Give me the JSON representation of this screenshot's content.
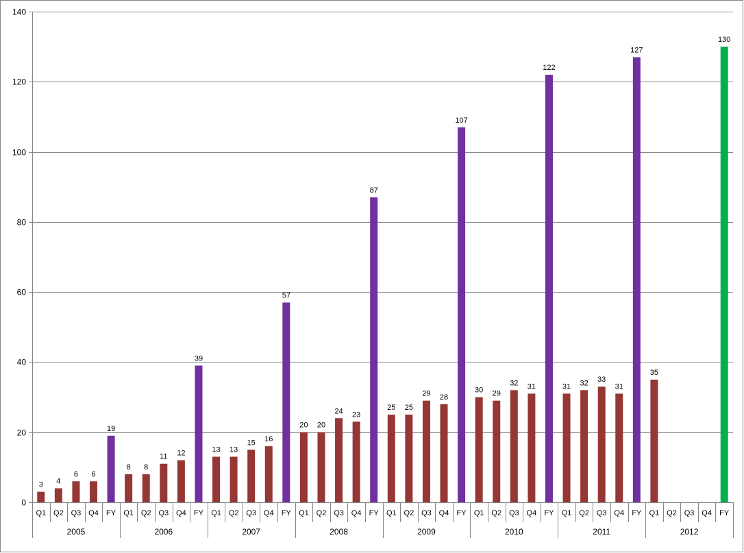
{
  "chart_data": {
    "type": "bar",
    "title": "",
    "xlabel": "",
    "ylabel": "",
    "ylim": [
      0,
      140
    ],
    "yticks": [
      "0",
      "20",
      "40",
      "60",
      "80",
      "100",
      "120",
      "140"
    ],
    "grid": true,
    "legend": "none",
    "groups": [
      {
        "year": "2005",
        "categories": [
          "Q1",
          "Q2",
          "Q3",
          "Q4",
          "FY"
        ],
        "values": [
          3,
          4,
          6,
          6,
          19
        ]
      },
      {
        "year": "2006",
        "categories": [
          "Q1",
          "Q2",
          "Q3",
          "Q4",
          "FY"
        ],
        "values": [
          8,
          8,
          11,
          12,
          39
        ]
      },
      {
        "year": "2007",
        "categories": [
          "Q1",
          "Q2",
          "Q3",
          "Q4",
          "FY"
        ],
        "values": [
          13,
          13,
          15,
          16,
          57
        ]
      },
      {
        "year": "2008",
        "categories": [
          "Q1",
          "Q2",
          "Q3",
          "Q4",
          "FY"
        ],
        "values": [
          20,
          20,
          24,
          23,
          87
        ]
      },
      {
        "year": "2009",
        "categories": [
          "Q1",
          "Q2",
          "Q3",
          "Q4",
          "FY"
        ],
        "values": [
          25,
          25,
          29,
          28,
          107
        ]
      },
      {
        "year": "2010",
        "categories": [
          "Q1",
          "Q2",
          "Q3",
          "Q4",
          "FY"
        ],
        "values": [
          30,
          29,
          32,
          31,
          122
        ]
      },
      {
        "year": "2011",
        "categories": [
          "Q1",
          "Q2",
          "Q3",
          "Q4",
          "FY"
        ],
        "values": [
          31,
          32,
          33,
          31,
          127
        ]
      },
      {
        "year": "2012",
        "categories": [
          "Q1",
          "Q2",
          "Q3",
          "Q4",
          "FY"
        ],
        "values": [
          35,
          null,
          null,
          null,
          130
        ]
      }
    ],
    "colors": {
      "quarter": "#953735",
      "full_year": "#7030A0",
      "full_year_latest": "#00B050",
      "grid": "#868686",
      "axis": "#868686"
    }
  }
}
